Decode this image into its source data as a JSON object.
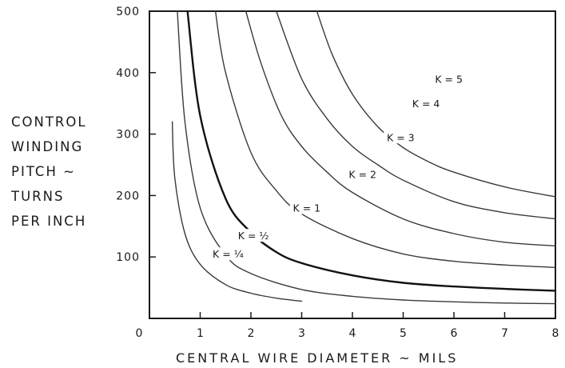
{
  "chart_data": {
    "type": "line",
    "xlabel": "CENTRAL WIRE DIAMETER ~ MILS",
    "ylabel_lines": [
      "CONTROL",
      "WINDING",
      "PITCH ~",
      "TURNS",
      "PER INCH"
    ],
    "xlim": [
      0,
      8
    ],
    "ylim": [
      0,
      500
    ],
    "x_ticks": [
      "0",
      "1",
      "2",
      "3",
      "4",
      "5",
      "6",
      "7",
      "8"
    ],
    "y_ticks": [
      "100",
      "200",
      "300",
      "400",
      "500"
    ],
    "grid": false,
    "series": [
      {
        "name": "K = 1/4",
        "label_text": "K = ¼",
        "emphasis": false,
        "x": [
          0.45,
          0.5,
          0.7,
          1.0,
          1.5,
          2.0,
          2.5,
          3.0
        ],
        "y": [
          320,
          228,
          138,
          88,
          55,
          41,
          33,
          28
        ]
      },
      {
        "name": "K = 1/2",
        "label_text": "K = ½",
        "emphasis": false,
        "x": [
          0.55,
          0.7,
          1.0,
          1.5,
          2.0,
          3.0,
          4.0,
          5.0,
          6.0,
          7.0,
          8.0
        ],
        "y": [
          500,
          320,
          180,
          103,
          73,
          47,
          36,
          30,
          27,
          25,
          24
        ]
      },
      {
        "name": "K = 1",
        "label_text": "K = 1",
        "emphasis": true,
        "x": [
          0.75,
          1.0,
          1.5,
          2.0,
          2.5,
          3.0,
          4.0,
          5.0,
          6.0,
          7.0,
          8.0
        ],
        "y": [
          500,
          330,
          195,
          140,
          108,
          90,
          70,
          58,
          52,
          48,
          45
        ]
      },
      {
        "name": "K = 2",
        "label_text": "K = 2",
        "emphasis": false,
        "x": [
          1.3,
          1.5,
          2.0,
          2.5,
          3.0,
          4.0,
          5.0,
          6.0,
          7.0,
          8.0
        ],
        "y": [
          500,
          400,
          270,
          208,
          170,
          130,
          105,
          93,
          87,
          83
        ]
      },
      {
        "name": "K = 3",
        "label_text": "K = 3",
        "emphasis": false,
        "x": [
          1.9,
          2.2,
          2.6,
          3.0,
          3.5,
          4.0,
          5.0,
          6.0,
          7.0,
          8.0
        ],
        "y": [
          500,
          415,
          330,
          280,
          238,
          205,
          162,
          138,
          124,
          118
        ]
      },
      {
        "name": "K = 4",
        "label_text": "K = 4",
        "emphasis": false,
        "x": [
          2.5,
          3.0,
          3.5,
          4.0,
          4.5,
          5.0,
          6.0,
          7.0,
          8.0
        ],
        "y": [
          500,
          390,
          325,
          280,
          250,
          225,
          190,
          172,
          162
        ]
      },
      {
        "name": "K = 5",
        "label_text": "K = 5",
        "emphasis": false,
        "x": [
          3.3,
          3.6,
          4.0,
          4.5,
          5.0,
          5.5,
          6.0,
          7.0,
          8.0
        ],
        "y": [
          500,
          430,
          365,
          312,
          278,
          255,
          238,
          214,
          198
        ]
      }
    ],
    "annotations": [
      {
        "text": "K = ¼",
        "x": 1.55,
        "y": 100
      },
      {
        "text": "K = ½",
        "x": 2.05,
        "y": 130
      },
      {
        "text": "K = 1",
        "x": 3.1,
        "y": 175
      },
      {
        "text": "K = 2",
        "x": 4.2,
        "y": 230
      },
      {
        "text": "K = 3",
        "x": 4.95,
        "y": 290
      },
      {
        "text": "K = 4",
        "x": 5.45,
        "y": 345
      },
      {
        "text": "K = 5",
        "x": 5.9,
        "y": 385
      }
    ]
  }
}
